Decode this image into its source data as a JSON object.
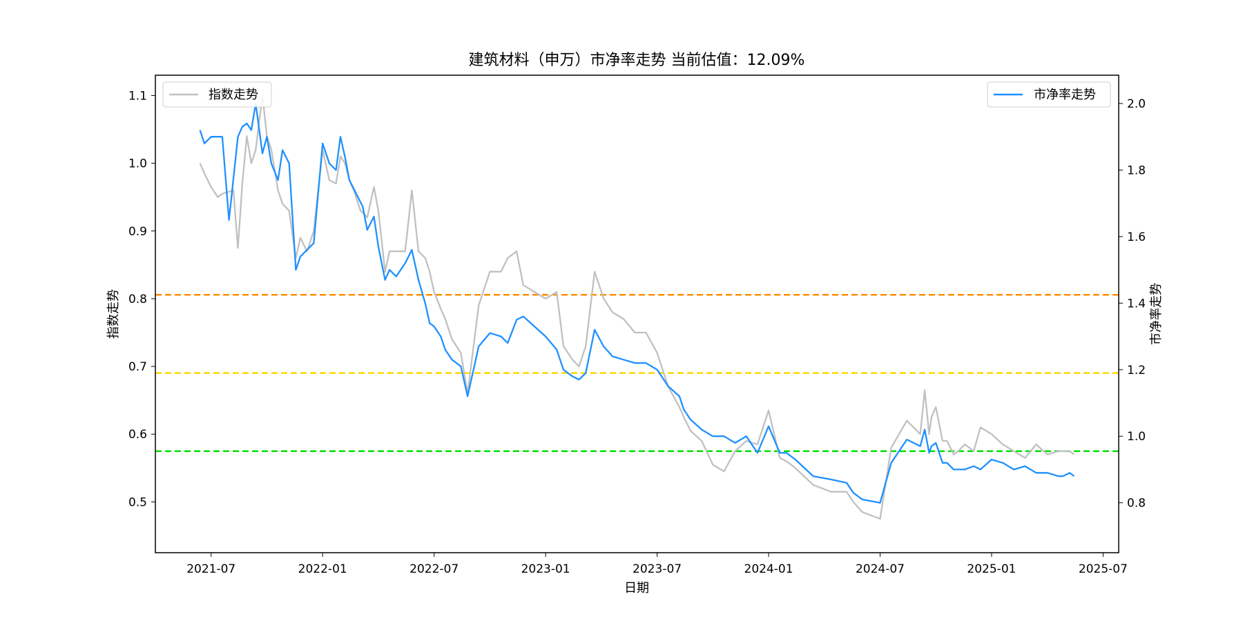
{
  "chart_data": {
    "type": "line",
    "title": "建筑材料（申万）市净率走势 当前估值：12.09%",
    "xlabel": "日期",
    "ylabel_left": "指数走势",
    "ylabel_right": "市净率走势",
    "x_tick_labels": [
      "2021-07",
      "2022-01",
      "2022-07",
      "2023-01",
      "2023-07",
      "2024-01",
      "2024-07",
      "2025-01",
      "2025-07"
    ],
    "x_tick_decimal_years": [
      2021.5,
      2022.0,
      2022.5,
      2023.0,
      2023.5,
      2024.0,
      2024.5,
      2025.0,
      2025.5
    ],
    "xlim_decimal_years": [
      2021.25,
      2025.57
    ],
    "ylim_left": [
      0.425,
      1.13
    ],
    "ylim_right": [
      0.65,
      2.085
    ],
    "yticks_left": [
      "0.5",
      "0.6",
      "0.7",
      "0.8",
      "0.9",
      "1.0",
      "1.1"
    ],
    "yticks_right": [
      "0.8",
      "1.0",
      "1.2",
      "1.4",
      "1.6",
      "1.8",
      "2.0"
    ],
    "legend_left": "指数走势",
    "legend_right": "市净率走势",
    "reference_lines_right_axis": [
      {
        "value": 1.425,
        "color": "#ff8c00"
      },
      {
        "value": 1.19,
        "color": "#ffd700"
      },
      {
        "value": 0.955,
        "color": "#00e000"
      }
    ],
    "series": [
      {
        "name": "指数走势",
        "axis": "left",
        "color": "#c0c0c0",
        "x": [
          2021.45,
          2021.47,
          2021.5,
          2021.53,
          2021.55,
          2021.6,
          2021.62,
          2021.64,
          2021.66,
          2021.68,
          2021.7,
          2021.73,
          2021.75,
          2021.77,
          2021.8,
          2021.82,
          2021.85,
          2021.88,
          2021.9,
          2021.93,
          2021.96,
          2022.0,
          2022.03,
          2022.06,
          2022.08,
          2022.1,
          2022.12,
          2022.14,
          2022.17,
          2022.2,
          2022.23,
          2022.25,
          2022.28,
          2022.3,
          2022.33,
          2022.37,
          2022.4,
          2022.43,
          2022.46,
          2022.48,
          2022.5,
          2022.53,
          2022.55,
          2022.58,
          2022.62,
          2022.65,
          2022.7,
          2022.75,
          2022.8,
          2022.83,
          2022.87,
          2022.9,
          2022.95,
          2023.0,
          2023.05,
          2023.08,
          2023.12,
          2023.15,
          2023.18,
          2023.22,
          2023.26,
          2023.3,
          2023.35,
          2023.4,
          2023.45,
          2023.5,
          2023.55,
          2023.6,
          2023.62,
          2023.65,
          2023.7,
          2023.75,
          2023.8,
          2023.85,
          2023.9,
          2023.95,
          2024.0,
          2024.05,
          2024.08,
          2024.12,
          2024.2,
          2024.28,
          2024.35,
          2024.38,
          2024.42,
          2024.5,
          2024.55,
          2024.62,
          2024.68,
          2024.7,
          2024.72,
          2024.73,
          2024.75,
          2024.78,
          2024.8,
          2024.83,
          2024.85,
          2024.88,
          2024.92,
          2024.95,
          2025.0,
          2025.05,
          2025.1,
          2025.15,
          2025.2,
          2025.25,
          2025.3,
          2025.35,
          2025.37
        ],
        "y": [
          1.0,
          0.985,
          0.965,
          0.95,
          0.955,
          0.96,
          0.875,
          0.97,
          1.04,
          1.0,
          1.02,
          1.1,
          1.04,
          1.02,
          0.96,
          0.94,
          0.93,
          0.86,
          0.89,
          0.87,
          0.9,
          1.02,
          0.975,
          0.97,
          1.01,
          1.0,
          0.975,
          0.96,
          0.93,
          0.92,
          0.965,
          0.93,
          0.84,
          0.87,
          0.87,
          0.87,
          0.96,
          0.87,
          0.86,
          0.84,
          0.81,
          0.785,
          0.77,
          0.74,
          0.72,
          0.66,
          0.79,
          0.84,
          0.84,
          0.86,
          0.87,
          0.82,
          0.81,
          0.8,
          0.81,
          0.73,
          0.71,
          0.7,
          0.73,
          0.84,
          0.8,
          0.78,
          0.77,
          0.75,
          0.75,
          0.72,
          0.67,
          0.64,
          0.625,
          0.605,
          0.59,
          0.555,
          0.545,
          0.575,
          0.59,
          0.585,
          0.635,
          0.565,
          0.56,
          0.55,
          0.525,
          0.515,
          0.515,
          0.5,
          0.485,
          0.475,
          0.58,
          0.62,
          0.6,
          0.665,
          0.6,
          0.625,
          0.64,
          0.59,
          0.59,
          0.57,
          0.575,
          0.585,
          0.575,
          0.61,
          0.6,
          0.585,
          0.575,
          0.565,
          0.585,
          0.57,
          0.575,
          0.575,
          0.57
        ]
      },
      {
        "name": "市净率走势",
        "axis": "right",
        "color": "#1e90ff",
        "x": [
          2021.45,
          2021.47,
          2021.5,
          2021.52,
          2021.55,
          2021.58,
          2021.62,
          2021.64,
          2021.66,
          2021.68,
          2021.7,
          2021.73,
          2021.75,
          2021.77,
          2021.8,
          2021.82,
          2021.85,
          2021.88,
          2021.9,
          2021.93,
          2021.96,
          2022.0,
          2022.03,
          2022.06,
          2022.08,
          2022.1,
          2022.12,
          2022.15,
          2022.18,
          2022.2,
          2022.23,
          2022.25,
          2022.28,
          2022.3,
          2022.33,
          2022.37,
          2022.4,
          2022.43,
          2022.46,
          2022.48,
          2022.5,
          2022.53,
          2022.55,
          2022.58,
          2022.62,
          2022.65,
          2022.7,
          2022.75,
          2022.8,
          2022.83,
          2022.87,
          2022.9,
          2022.95,
          2023.0,
          2023.05,
          2023.08,
          2023.12,
          2023.15,
          2023.18,
          2023.22,
          2023.26,
          2023.3,
          2023.35,
          2023.4,
          2023.45,
          2023.5,
          2023.55,
          2023.6,
          2023.62,
          2023.65,
          2023.7,
          2023.75,
          2023.8,
          2023.85,
          2023.9,
          2023.95,
          2024.0,
          2024.05,
          2024.08,
          2024.12,
          2024.2,
          2024.28,
          2024.35,
          2024.38,
          2024.42,
          2024.5,
          2024.55,
          2024.62,
          2024.68,
          2024.7,
          2024.72,
          2024.73,
          2024.75,
          2024.78,
          2024.8,
          2024.83,
          2024.85,
          2024.88,
          2024.92,
          2024.95,
          2025.0,
          2025.05,
          2025.1,
          2025.15,
          2025.2,
          2025.25,
          2025.3,
          2025.32,
          2025.35,
          2025.37
        ],
        "y": [
          1.92,
          1.88,
          1.9,
          1.9,
          1.9,
          1.65,
          1.9,
          1.93,
          1.94,
          1.92,
          2.0,
          1.85,
          1.9,
          1.82,
          1.77,
          1.86,
          1.82,
          1.5,
          1.54,
          1.56,
          1.58,
          1.88,
          1.82,
          1.8,
          1.9,
          1.84,
          1.77,
          1.73,
          1.69,
          1.62,
          1.66,
          1.57,
          1.47,
          1.5,
          1.48,
          1.52,
          1.56,
          1.47,
          1.4,
          1.34,
          1.33,
          1.3,
          1.26,
          1.23,
          1.21,
          1.12,
          1.27,
          1.31,
          1.3,
          1.28,
          1.35,
          1.36,
          1.33,
          1.3,
          1.26,
          1.2,
          1.18,
          1.17,
          1.19,
          1.32,
          1.27,
          1.24,
          1.23,
          1.22,
          1.22,
          1.2,
          1.15,
          1.12,
          1.08,
          1.05,
          1.02,
          1.0,
          1.0,
          0.98,
          1.0,
          0.95,
          1.03,
          0.95,
          0.95,
          0.93,
          0.88,
          0.87,
          0.86,
          0.83,
          0.81,
          0.8,
          0.92,
          0.99,
          0.97,
          1.02,
          0.95,
          0.97,
          0.98,
          0.92,
          0.92,
          0.9,
          0.9,
          0.9,
          0.91,
          0.9,
          0.93,
          0.92,
          0.9,
          0.91,
          0.89,
          0.89,
          0.88,
          0.88,
          0.89,
          0.88
        ]
      }
    ]
  }
}
